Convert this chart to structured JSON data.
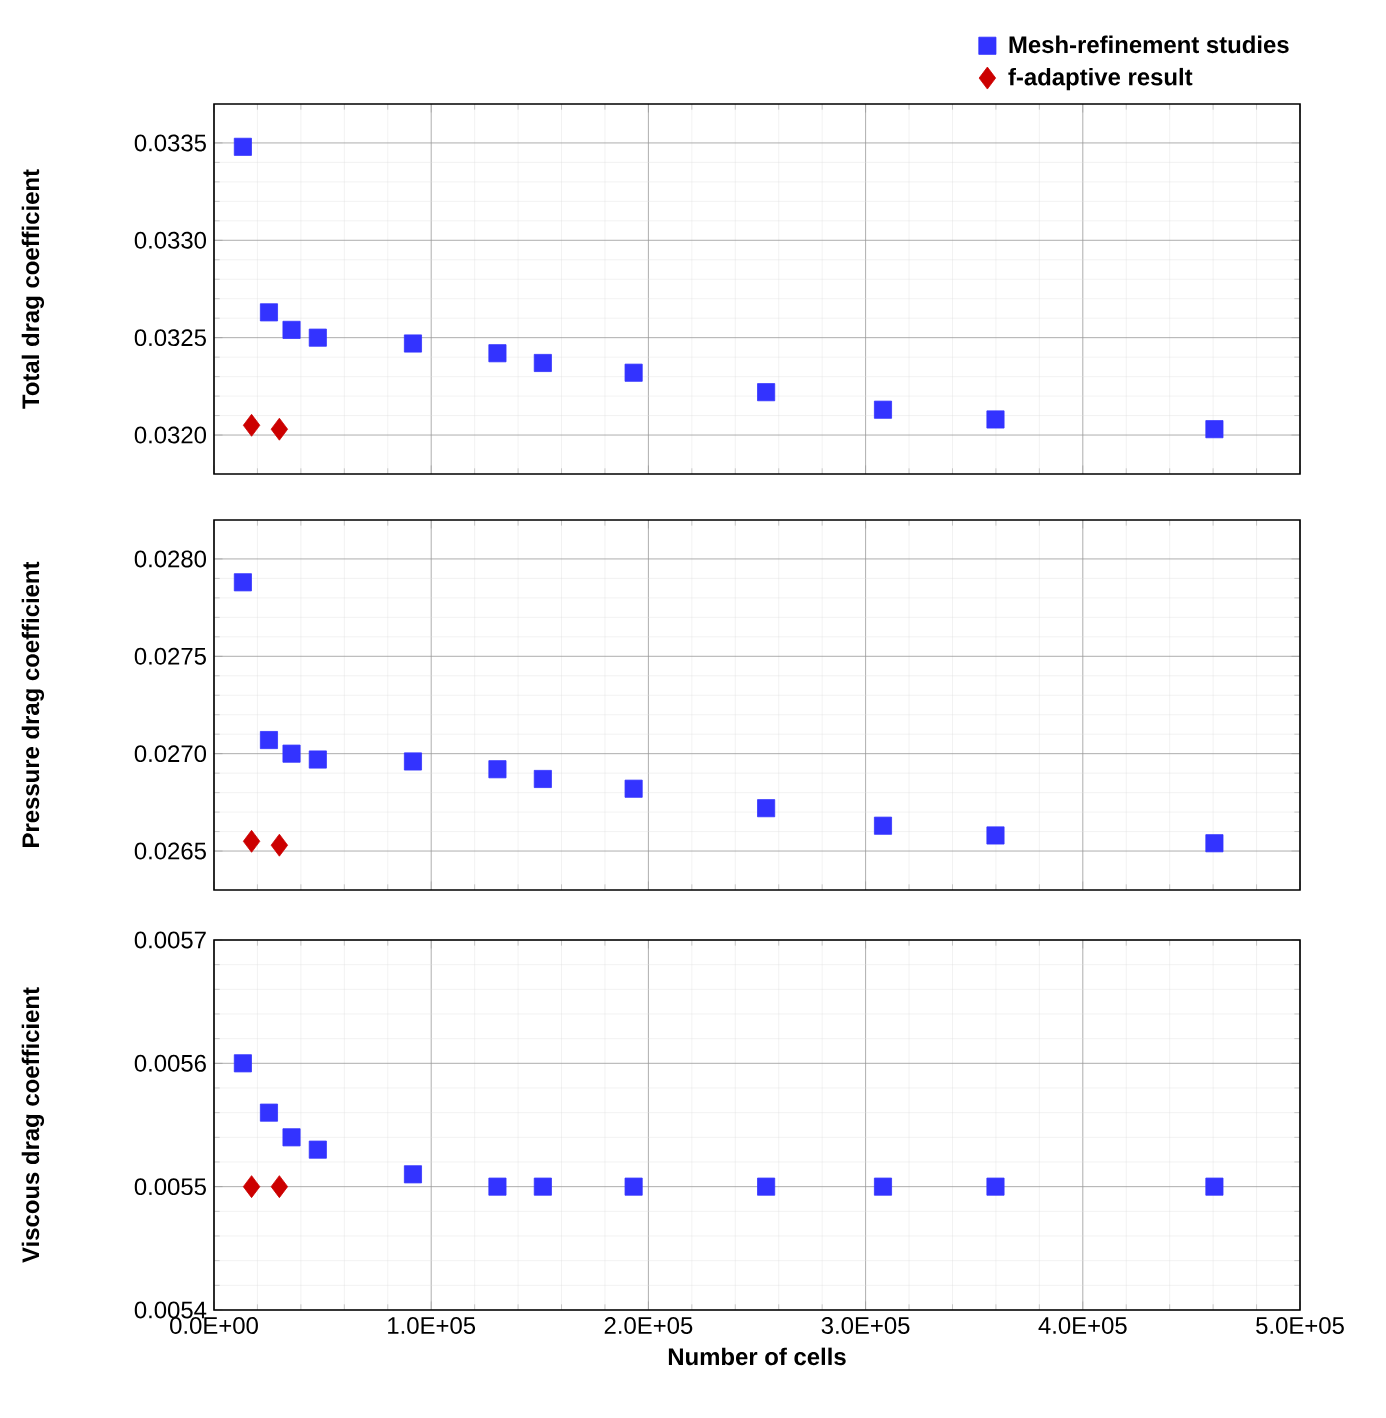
{
  "chart_data": [
    {
      "type": "scatter",
      "ylabel": "Total drag coefficient",
      "xlim": [
        0,
        500000
      ],
      "ylim": [
        0.0318,
        0.0337
      ],
      "xticks": [
        {
          "value": 0,
          "label": null
        },
        {
          "value": 100000,
          "label": null
        },
        {
          "value": 200000,
          "label": null
        },
        {
          "value": 300000,
          "label": null
        },
        {
          "value": 400000,
          "label": null
        },
        {
          "value": 500000,
          "label": null
        }
      ],
      "yticks": [
        {
          "value": 0.032,
          "label": "0.0320"
        },
        0.0325,
        {
          "value": 0.033,
          "label": "0.0330"
        },
        0.0335
      ],
      "tick_labels": "y",
      "grid": true,
      "legend": "top right",
      "series": [
        {
          "name": "Mesh-refinement studies",
          "color": "#3333ff",
          "marker": "square",
          "x": [
            13300,
            25300,
            35700,
            47800,
            91600,
            130500,
            151400,
            193200,
            254200,
            308000,
            359800,
            460600
          ],
          "values": [
            0.03348,
            0.03263,
            0.03254,
            0.0325,
            0.03247,
            0.03242,
            0.03237,
            0.03232,
            0.03222,
            0.03213,
            0.03208,
            0.03203
          ]
        },
        {
          "name": "f-adaptive result",
          "color": "#cc0000",
          "marker": "diamond",
          "x": [
            17300,
            30100
          ],
          "values": [
            0.03205,
            0.03203
          ]
        }
      ]
    },
    {
      "type": "scatter",
      "ylabel": "Pressure drag coefficient",
      "xlim": [
        0,
        500000
      ],
      "ylim": [
        0.0263,
        0.0282
      ],
      "xticks": [
        {
          "value": 0,
          "label": null
        },
        {
          "value": 100000,
          "label": null
        },
        {
          "value": 200000,
          "label": null
        },
        {
          "value": 300000,
          "label": null
        },
        {
          "value": 400000,
          "label": null
        },
        {
          "value": 500000,
          "label": null
        }
      ],
      "yticks": [
        0.0265,
        {
          "value": 0.027,
          "label": "0.0270"
        },
        0.0275,
        {
          "value": 0.028,
          "label": "0.0280"
        }
      ],
      "tick_labels": "y",
      "grid": true,
      "series": [
        {
          "color": "#3333ff",
          "marker": "square",
          "x": [
            13300,
            25300,
            35700,
            47800,
            91600,
            130500,
            151400,
            193200,
            254200,
            308000,
            359800,
            460600
          ],
          "values": [
            0.02788,
            0.02707,
            0.027,
            0.02697,
            0.02696,
            0.02692,
            0.02687,
            0.02682,
            0.02672,
            0.02663,
            0.02658,
            0.02654
          ]
        },
        {
          "color": "#cc0000",
          "marker": "diamond",
          "x": [
            17300,
            30100
          ],
          "values": [
            0.02655,
            0.02653
          ]
        }
      ]
    },
    {
      "type": "scatter",
      "ylabel": "Viscous drag coefficient",
      "xlabel": "Number of cells",
      "xlim": [
        0,
        500000
      ],
      "ylim": [
        0.0054,
        0.0057
      ],
      "xticks": [
        {
          "value": 0,
          "label": "0.0E+00"
        },
        {
          "value": 100000,
          "label": "1.0E+05"
        },
        {
          "value": 200000,
          "label": "2.0E+05"
        },
        {
          "value": 300000,
          "label": "3.0E+05"
        },
        {
          "value": 400000,
          "label": "4.0E+05"
        },
        {
          "value": 500000,
          "label": "5.0E+05"
        }
      ],
      "yticks": [
        0.0054,
        0.0055,
        0.0056,
        0.0057
      ],
      "grid": true,
      "series": [
        {
          "color": "#3333ff",
          "marker": "square",
          "x": [
            13300,
            25300,
            35700,
            47800,
            91600,
            130500,
            151400,
            193200,
            254200,
            308000,
            359800,
            460600
          ],
          "values": [
            0.0056,
            0.00556,
            0.00554,
            0.00553,
            0.00551,
            0.0055,
            0.0055,
            0.0055,
            0.0055,
            0.0055,
            0.0055,
            0.0055
          ]
        },
        {
          "color": "#cc0000",
          "marker": "diamond",
          "x": [
            17300,
            30100
          ],
          "values": [
            0.0055,
            0.0055
          ]
        }
      ]
    }
  ]
}
